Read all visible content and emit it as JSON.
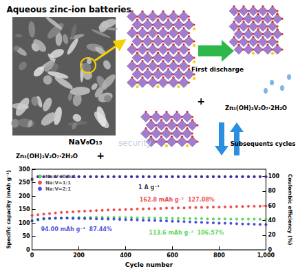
{
  "diagram": {
    "header": "Aqueous zinc-ion batteries",
    "pristine": "NaV₆O₁₅",
    "step1": "First discharge",
    "plus": "+",
    "product": "Zn₃(OH)₂V₂O₇·2H₂O",
    "watermark": "security",
    "step2": "Subsequents cycles"
  },
  "chart_data": {
    "type": "scatter",
    "marker": "circle",
    "x_label": "Cycle number",
    "y_label": "Specific capacity (mAh g⁻¹)",
    "y2_label": "Coulombic efficiency (%)",
    "xlim": [
      0,
      1000
    ],
    "xticks": [
      0,
      200,
      400,
      600,
      800,
      1000
    ],
    "ylim": [
      0,
      300
    ],
    "yticks": [
      0,
      50,
      100,
      150,
      200,
      250,
      300
    ],
    "y2lim": [
      0,
      110
    ],
    "y2ticks": [
      0,
      20,
      40,
      60,
      80,
      100
    ],
    "grid": false,
    "legend": "upper left",
    "x": [
      0,
      25,
      50,
      75,
      100,
      125,
      150,
      175,
      200,
      225,
      250,
      275,
      300,
      325,
      350,
      375,
      400,
      425,
      450,
      475,
      500,
      525,
      550,
      575,
      600,
      625,
      650,
      675,
      700,
      725,
      750,
      775,
      800,
      825,
      850,
      875,
      900,
      925,
      950,
      975,
      1000
    ],
    "series": [
      {
        "name": "Na:V=0.5:1",
        "color": "#33cc33",
        "values": [
          107,
          111,
          114,
          116,
          117,
          118,
          119,
          119.5,
          120,
          120,
          120,
          121,
          121,
          120,
          121,
          120,
          120,
          120,
          119,
          119,
          119,
          118,
          118,
          118,
          117,
          117,
          117,
          116,
          116,
          116,
          115,
          115,
          115,
          115,
          114,
          114,
          114,
          114,
          114,
          113.8,
          113.6
        ]
      },
      {
        "name": "Na:V=1:1",
        "color": "#e8231f",
        "values": [
          128,
          130,
          133,
          135,
          137,
          139,
          140,
          141,
          143,
          144,
          145,
          146,
          147,
          148,
          149,
          149,
          150,
          151,
          152,
          152,
          153,
          153,
          154,
          155,
          155,
          156,
          156,
          157,
          157,
          158,
          158,
          159,
          159,
          160,
          160,
          161,
          161,
          162,
          162,
          162.5,
          162.8
        ]
      },
      {
        "name": "Na:V=2:1",
        "color": "#1f1fd8",
        "values": [
          108,
          113,
          116,
          117,
          118,
          118,
          118,
          117,
          117,
          116,
          116,
          115,
          115,
          114,
          114,
          113,
          112,
          112,
          111,
          110,
          110,
          109,
          108,
          107,
          106,
          106,
          105,
          104,
          103,
          102,
          101,
          100,
          99,
          99,
          98,
          97,
          96,
          96,
          95,
          94.5,
          94.0
        ]
      },
      {
        "name": "Na:V=0.5:1",
        "color": "#33cc33",
        "axis": "y2",
        "values": [
          95,
          99.8,
          99.8,
          99.8,
          99.8,
          99.8,
          99.8,
          99.8,
          99.8,
          99.8,
          99.8,
          99.8,
          99.8,
          99.8,
          99.8,
          99.8,
          99.8,
          99.8,
          99.8,
          99.8,
          99.8,
          99.8,
          99.8,
          99.8,
          99.8,
          99.8,
          99.8,
          99.8,
          99.8,
          99.8,
          99.8,
          99.8,
          99.8,
          99.8,
          99.8,
          99.8,
          99.8,
          99.8,
          99.8,
          99.8,
          99.8
        ]
      },
      {
        "name": "Na:V=1:1",
        "color": "#e8231f",
        "axis": "y2",
        "values": [
          97,
          99.9,
          99.9,
          99.9,
          99.9,
          99.9,
          99.9,
          99.9,
          99.9,
          99.9,
          99.9,
          99.9,
          99.9,
          99.9,
          99.9,
          99.9,
          99.9,
          99.9,
          99.9,
          99.9,
          99.9,
          99.9,
          99.9,
          99.9,
          99.9,
          99.9,
          99.9,
          99.9,
          99.9,
          99.9,
          99.9,
          99.9,
          99.9,
          99.9,
          99.9,
          99.9,
          99.9,
          99.9,
          99.9,
          99.9,
          99.9
        ]
      },
      {
        "name": "Na:V=2:1",
        "color": "#1f1fd8",
        "axis": "y2",
        "values": [
          96,
          99.7,
          99.7,
          99.7,
          99.7,
          99.7,
          99.7,
          99.7,
          99.7,
          99.7,
          99.7,
          99.7,
          99.7,
          99.7,
          99.7,
          99.7,
          99.7,
          99.7,
          99.7,
          99.7,
          99.7,
          99.7,
          99.7,
          99.7,
          99.7,
          99.7,
          99.7,
          99.7,
          99.7,
          99.7,
          99.7,
          99.7,
          99.7,
          99.7,
          99.7,
          99.7,
          99.7,
          99.7,
          99.7,
          99.7,
          99.7
        ]
      }
    ],
    "annotations": [
      {
        "text": "1 A g⁻¹",
        "x": 500,
        "y": 232,
        "color": "#000000"
      },
      {
        "text": "162.8 mAh g⁻¹  127.08%",
        "x": 620,
        "y": 185,
        "color": "#e8231f"
      },
      {
        "text": "113.6 mAh g⁻¹  106.57%",
        "x": 660,
        "y": 62,
        "color": "#33cc33"
      },
      {
        "text": "94.00 mAh g⁻¹  87.44%",
        "x": 190,
        "y": 75,
        "color": "#1f1fd8"
      }
    ]
  }
}
